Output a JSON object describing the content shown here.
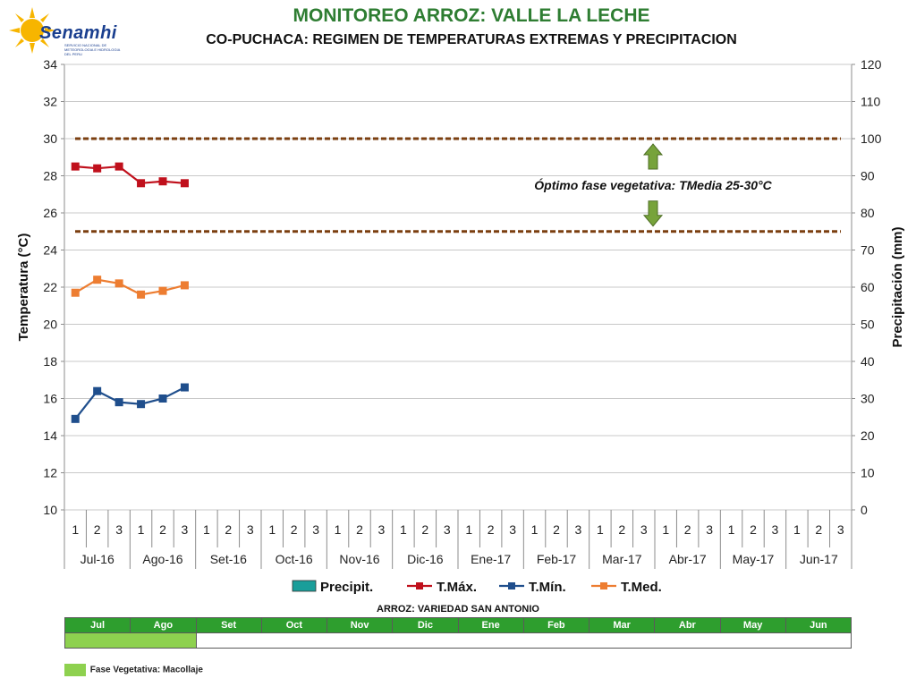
{
  "header": {
    "logo_text": "Senamhi",
    "logo_subtext": "SERVICIO NACIONAL DE METEOROLOGIA E HIDROLOGIA DEL PERU",
    "title": "MONITOREO ARROZ: VALLE LA LECHE",
    "subtitle": "CO-PUCHACA: REGIMEN DE TEMPERATURAS EXTREMAS Y PRECIPITACION"
  },
  "colors": {
    "tmax": "#c0101c",
    "tmin": "#1f4e8c",
    "tmed": "#ed7d31",
    "precip": "#1a9e9a",
    "threshold": "#7b3f10",
    "arrow": "#77a33b"
  },
  "chart_data": {
    "type": "line",
    "months": [
      "Jul-16",
      "Ago-16",
      "Set-16",
      "Oct-16",
      "Nov-16",
      "Dic-16",
      "Ene-17",
      "Feb-17",
      "Mar-17",
      "Abr-17",
      "May-17",
      "Jun-17"
    ],
    "decades": [
      "1",
      "2",
      "3"
    ],
    "ylabel": "Temperatura (°C)",
    "y2label": "Precipitación (mm)",
    "ylim": [
      10,
      34
    ],
    "yticks": [
      10,
      12,
      14,
      16,
      18,
      20,
      22,
      24,
      26,
      28,
      30,
      32,
      34
    ],
    "y2lim": [
      0,
      120
    ],
    "y2ticks": [
      0,
      10,
      20,
      30,
      40,
      50,
      60,
      70,
      80,
      90,
      100,
      110,
      120
    ],
    "grid": true,
    "legend_position": "bottom",
    "series": [
      {
        "name": "Precipit.",
        "kind": "bar",
        "axis": "right",
        "values": []
      },
      {
        "name": "T.Máx.",
        "kind": "line",
        "axis": "left",
        "values": [
          28.5,
          28.4,
          28.5,
          27.6,
          27.7,
          27.6
        ]
      },
      {
        "name": "T.Mín.",
        "kind": "line",
        "axis": "left",
        "values": [
          14.9,
          16.4,
          15.8,
          15.7,
          16.0,
          16.6
        ]
      },
      {
        "name": "T.Med.",
        "kind": "line",
        "axis": "left",
        "values": [
          21.7,
          22.4,
          22.2,
          21.6,
          21.8,
          22.1
        ]
      }
    ],
    "thresholds": [
      30,
      25
    ],
    "annotation": "Óptimo fase vegetativa: TMedia 25-30°C"
  },
  "phase_panel": {
    "title": "ARROZ: VARIEDAD SAN ANTONIO",
    "months": [
      "Jul",
      "Ago",
      "Set",
      "Oct",
      "Nov",
      "Dic",
      "Ene",
      "Feb",
      "Mar",
      "Abr",
      "May",
      "Jun"
    ],
    "filled_months": 2,
    "legend_label": "Fase Vegetativa: Macollaje"
  }
}
